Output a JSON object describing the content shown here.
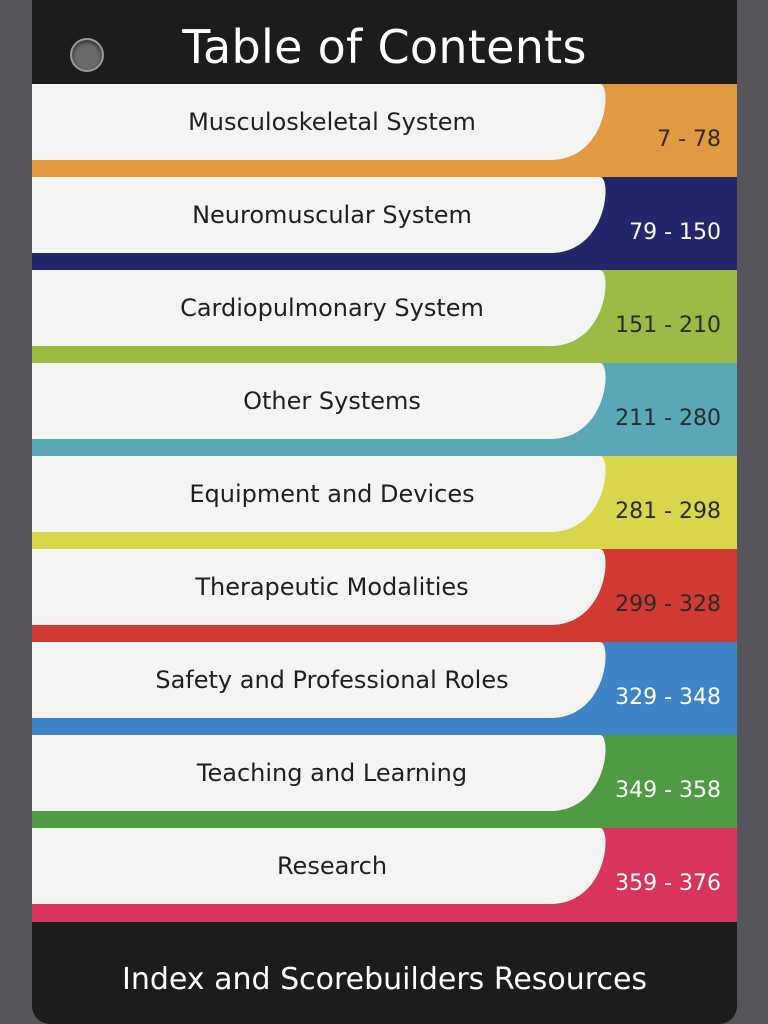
{
  "title": "Table of Contents",
  "sections": [
    {
      "label": "Musculoskeletal System",
      "range": "7 - 78",
      "color": "#e29a40",
      "range_color": "#2b2b2b"
    },
    {
      "label": "Neuromuscular System",
      "range": "79 - 150",
      "color": "#23266a",
      "range_color": "#ffffff"
    },
    {
      "label": "Cardiopulmonary System",
      "range": "151 - 210",
      "color": "#9bbb45",
      "range_color": "#2b2b2b"
    },
    {
      "label": "Other Systems",
      "range": "211 - 280",
      "color": "#5aa7b7",
      "range_color": "#2b2b2b"
    },
    {
      "label": "Equipment and Devices",
      "range": "281 - 298",
      "color": "#d8d64a",
      "range_color": "#2b2b2b"
    },
    {
      "label": "Therapeutic Modalities",
      "range": "299 - 328",
      "color": "#d03a33",
      "range_color": "#2b2b2b"
    },
    {
      "label": "Safety and Professional Roles",
      "range": "329 - 348",
      "color": "#3f84c6",
      "range_color": "#ffffff"
    },
    {
      "label": "Teaching and Learning",
      "range": "349 - 358",
      "color": "#4f9b43",
      "range_color": "#ffffff"
    },
    {
      "label": "Research",
      "range": "359 - 376",
      "color": "#d8345c",
      "range_color": "#ffffff"
    }
  ],
  "footer": "Index and Scorebuilders Resources"
}
